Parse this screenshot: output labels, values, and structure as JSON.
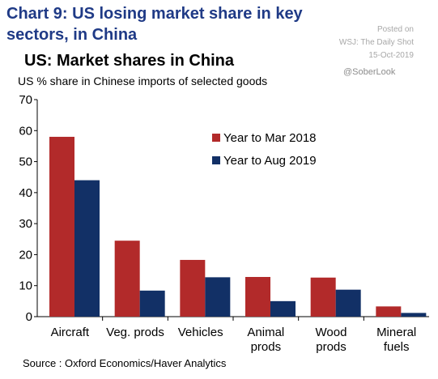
{
  "header": {
    "title": "Chart 9: US losing market share in key sectors, in China",
    "posted_on": "Posted on",
    "publisher": "WSJ: The Daily Shot",
    "date": "15-Oct-2019",
    "handle": "@SoberLook"
  },
  "footer": {
    "source": "Source : Oxford Economics/Haver Analytics"
  },
  "colors": {
    "series_1": "#b22a2a",
    "series_2": "#123066"
  },
  "chart_data": {
    "type": "bar",
    "title": "US: Market shares in China",
    "subtitle": "US % share in Chinese imports of selected goods",
    "xlabel": "",
    "ylabel": "",
    "categories": [
      [
        "Aircraft"
      ],
      [
        "Veg. prods"
      ],
      [
        "Vehicles"
      ],
      [
        "Animal",
        "prods"
      ],
      [
        "Wood",
        "prods"
      ],
      [
        "Mineral",
        "fuels"
      ]
    ],
    "series": [
      {
        "name": "Year to Mar 2018",
        "values": [
          58,
          24.5,
          18.3,
          12.8,
          12.6,
          3.3
        ]
      },
      {
        "name": "Year to Aug 2019",
        "values": [
          44,
          8.4,
          12.7,
          5.0,
          8.7,
          1.2
        ]
      }
    ],
    "ylim": [
      0,
      70
    ],
    "yticks": [
      0,
      10,
      20,
      30,
      40,
      50,
      60,
      70
    ],
    "grid": false,
    "legend_position": "top-right"
  }
}
